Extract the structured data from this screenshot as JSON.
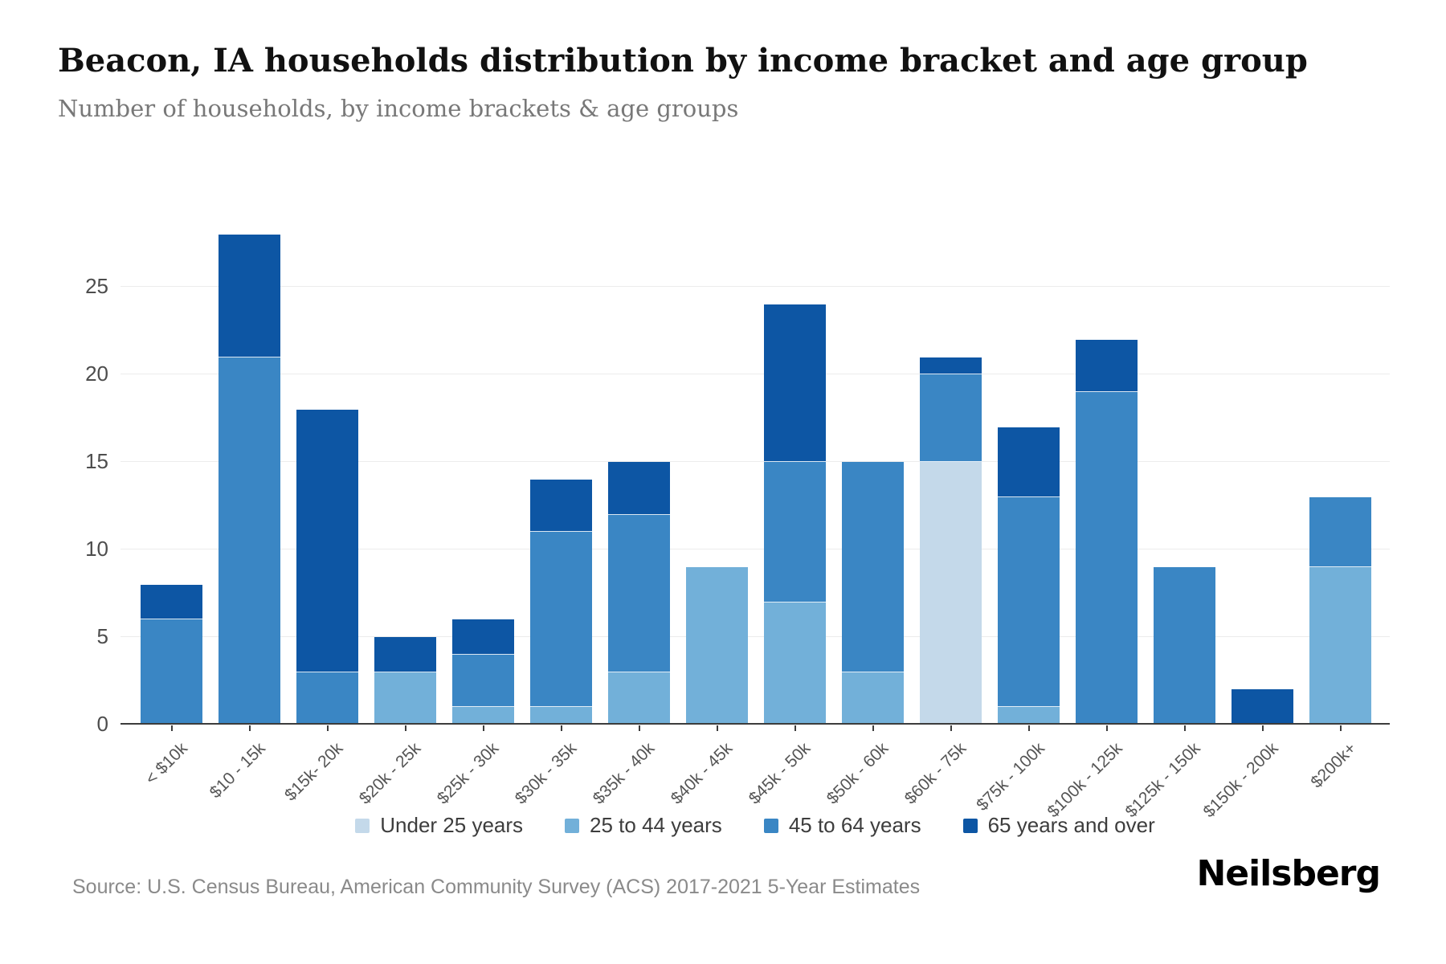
{
  "header": {
    "title": "Beacon, IA households distribution by income bracket and age group",
    "subtitle": "Number of households, by income brackets & age groups"
  },
  "chart_data": {
    "type": "bar",
    "stacked": true,
    "title": "Beacon, IA households distribution by income bracket and age group",
    "subtitle": "Number of households, by income brackets & age groups",
    "xlabel": "",
    "ylabel": "",
    "categories": [
      "< $10k",
      "$10 - 15k",
      "$15k- 20k",
      "$20k - 25k",
      "$25k - 30k",
      "$30k - 35k",
      "$35k - 40k",
      "$40k - 45k",
      "$45k - 50k",
      "$50k - 60k",
      "$60k - 75k",
      "$75k - 100k",
      "$100k - 125k",
      "$125k - 150k",
      "$150k - 200k",
      "$200k+"
    ],
    "series": [
      {
        "name": "Under 25 years",
        "color": "#c4d9ea",
        "values": [
          0,
          0,
          0,
          0,
          0,
          0,
          0,
          0,
          0,
          0,
          15,
          0,
          0,
          0,
          0,
          0
        ]
      },
      {
        "name": "25 to 44 years",
        "color": "#72b0d9",
        "values": [
          0,
          0,
          0,
          3,
          1,
          1,
          3,
          9,
          7,
          3,
          0,
          1,
          0,
          0,
          0,
          9
        ]
      },
      {
        "name": "45 to 64 years",
        "color": "#3a86c4",
        "values": [
          6,
          21,
          3,
          0,
          3,
          10,
          9,
          0,
          8,
          12,
          5,
          12,
          19,
          9,
          0,
          4
        ]
      },
      {
        "name": "65 years and over",
        "color": "#0d56a4",
        "values": [
          2,
          7,
          15,
          2,
          2,
          3,
          3,
          0,
          9,
          0,
          1,
          4,
          3,
          0,
          2,
          0
        ]
      }
    ],
    "totals": [
      8,
      28,
      18,
      5,
      6,
      14,
      15,
      9,
      24,
      15,
      21,
      17,
      22,
      9,
      2,
      13
    ],
    "ylim": [
      0,
      28
    ],
    "yticks": [
      0,
      5,
      10,
      15,
      20,
      25
    ],
    "grid": true,
    "legend_position": "bottom"
  },
  "footer": {
    "source": "Source: U.S. Census Bureau, American Community Survey (ACS) 2017-2021 5-Year Estimates",
    "logo": "Neilsberg"
  }
}
